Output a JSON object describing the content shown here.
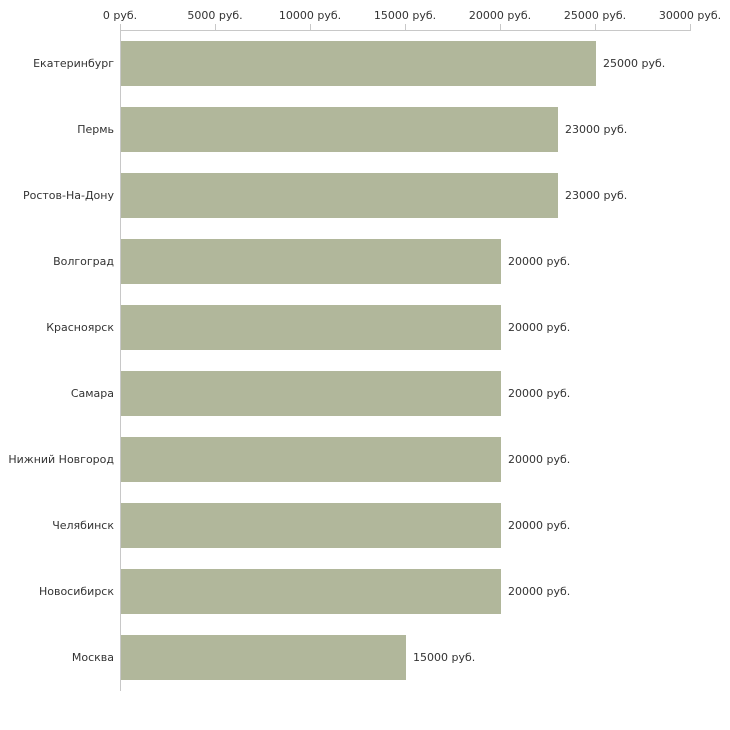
{
  "chart_data": {
    "type": "bar",
    "orientation": "horizontal",
    "title": "",
    "xlabel": "",
    "ylabel": "",
    "categories": [
      "Екатеринбург",
      "Пермь",
      "Ростов-На-Дону",
      "Волгоград",
      "Красноярск",
      "Самара",
      "Нижний Новгород",
      "Челябинск",
      "Новосибирск",
      "Москва"
    ],
    "values": [
      25000,
      23000,
      23000,
      20000,
      20000,
      20000,
      20000,
      20000,
      20000,
      15000
    ],
    "value_labels": [
      "25000 руб.",
      "23000 руб.",
      "23000 руб.",
      "20000 руб.",
      "20000 руб.",
      "20000 руб.",
      "20000 руб.",
      "20000 руб.",
      "20000 руб.",
      "15000 руб."
    ],
    "x_tick_values": [
      0,
      5000,
      10000,
      15000,
      20000,
      25000,
      30000
    ],
    "x_tick_labels": [
      "0 руб.",
      "5000 руб.",
      "10000 руб.",
      "15000 руб.",
      "20000 руб.",
      "25000 руб.",
      "30000 руб."
    ],
    "xlim": [
      0,
      30000
    ],
    "grid": false,
    "legend": "none",
    "tick_position": "top",
    "bar_color": "#b1b79b",
    "axis_color": "#c8c8c8",
    "text_color": "#333333",
    "background_color": "#ffffff"
  }
}
